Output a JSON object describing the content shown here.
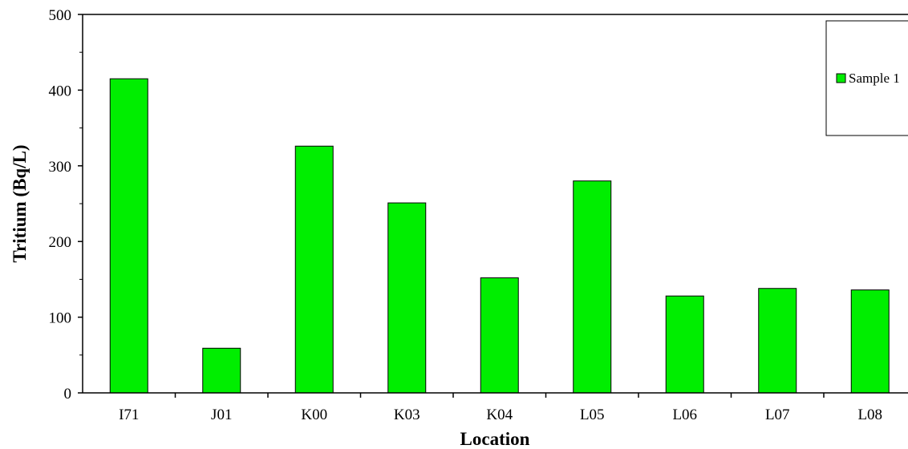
{
  "chart_data": {
    "type": "bar",
    "title": "",
    "xlabel": "Location",
    "ylabel": "Tritium (Bq/L)",
    "categories": [
      "I71",
      "J01",
      "K00",
      "K03",
      "K04",
      "L05",
      "L06",
      "L07",
      "L08"
    ],
    "series": [
      {
        "name": "Sample 1",
        "values": [
          415,
          59,
          326,
          251,
          152,
          280,
          128,
          138,
          136
        ]
      }
    ],
    "ylim": [
      0,
      500
    ],
    "yticks": [
      0,
      100,
      200,
      300,
      400,
      500
    ],
    "grid": false,
    "legend_position": "top-right"
  },
  "colors": {
    "bar": "#00ee00",
    "axis": "#000000"
  }
}
